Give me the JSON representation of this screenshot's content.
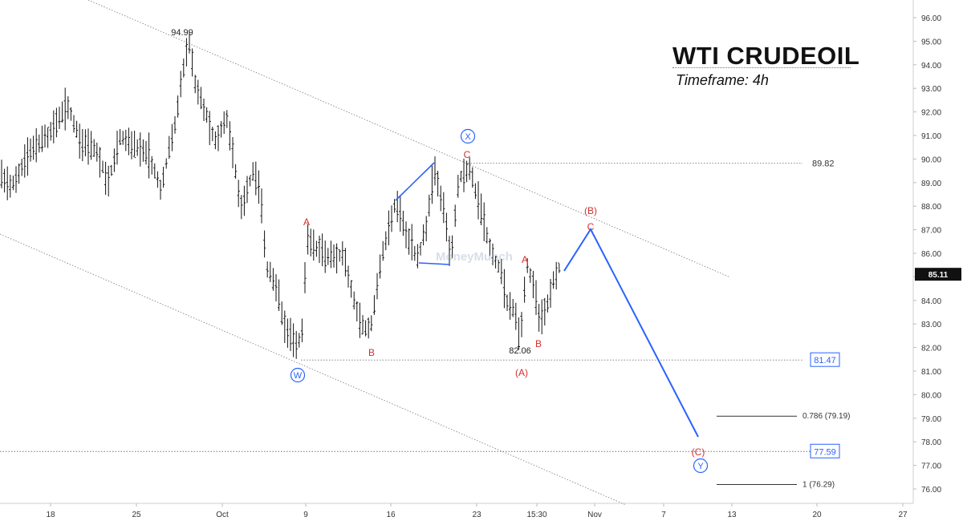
{
  "title": "WTI CRUDEOIL",
  "subtitle": "Timeframe: 4h",
  "watermark": "MoneyMunch",
  "chart_data": {
    "type": "candlestick-ohlc",
    "instrument": "WTI CRUDEOIL",
    "timeframe": "4h",
    "y_axis": {
      "min": 75.3,
      "max": 96.6,
      "ticks": [
        76.0,
        77.0,
        78.0,
        79.0,
        80.0,
        81.0,
        82.0,
        83.0,
        84.0,
        85.0,
        86.0,
        87.0,
        88.0,
        89.0,
        90.0,
        91.0,
        92.0,
        93.0,
        94.0,
        95.0,
        96.0
      ]
    },
    "x_axis": {
      "ticks": [
        "18",
        "25",
        "Oct",
        "9",
        "16",
        "23",
        "15:30",
        "Nov",
        "7",
        "13",
        "20",
        "27"
      ]
    },
    "current_price": 85.11,
    "key_levels": [
      {
        "label": "89.82",
        "value": 89.82,
        "boxed": false
      },
      {
        "label": "81.47",
        "value": 81.47,
        "boxed": true
      },
      {
        "label": "77.59",
        "value": 77.59,
        "boxed": true
      },
      {
        "label": "0.786 (79.19)",
        "value": 79.19,
        "boxed": false
      },
      {
        "label": "1 (76.29)",
        "value": 76.29,
        "boxed": false
      }
    ],
    "price_labels": [
      {
        "text": "94.99",
        "value": 94.99
      },
      {
        "text": "82.06",
        "value": 82.06
      }
    ],
    "wave_labels": [
      {
        "text": "W",
        "style": "circled",
        "color": "#2962ff",
        "price": 80.8
      },
      {
        "text": "X",
        "style": "circled",
        "color": "#2962ff",
        "price": 91.0
      },
      {
        "text": "Y",
        "style": "circled",
        "color": "#2962ff",
        "price": 77.0
      },
      {
        "text": "A",
        "style": "plain",
        "color": "#d32f2f",
        "price": 87.6
      },
      {
        "text": "B",
        "style": "plain",
        "color": "#d32f2f",
        "price": 81.9
      },
      {
        "text": "C",
        "style": "plain",
        "color": "#d32f2f",
        "price": 90.3
      },
      {
        "text": "A",
        "style": "plain",
        "color": "#d32f2f",
        "price": 85.9
      },
      {
        "text": "B",
        "style": "plain",
        "color": "#d32f2f",
        "price": 82.3
      },
      {
        "text": "(A)",
        "style": "plain",
        "color": "#d32f2f",
        "price": 81.0
      },
      {
        "text": "(B)",
        "style": "plain",
        "color": "#d32f2f",
        "price": 88.1
      },
      {
        "text": "C",
        "style": "plain",
        "color": "#d32f2f",
        "price": 87.3
      },
      {
        "text": "(C)",
        "style": "plain",
        "color": "#d32f2f",
        "price": 77.9
      }
    ],
    "colors": {
      "bars": "#111111",
      "wave_path": "#2962ff",
      "labels_red": "#d32f2f",
      "price_tag": "#111111",
      "channel": "#888888"
    }
  }
}
